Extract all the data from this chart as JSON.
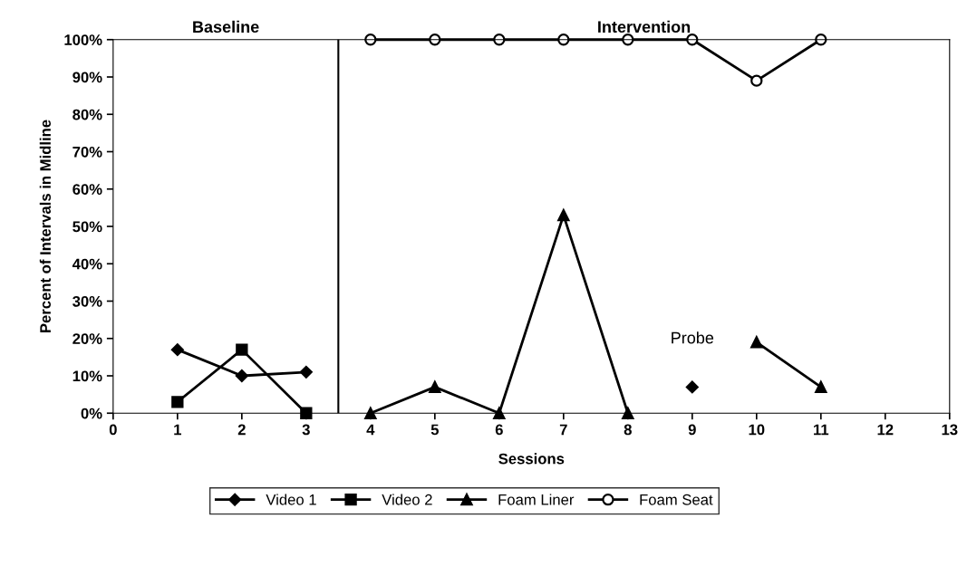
{
  "chart_data": {
    "type": "line",
    "xlabel": "Sessions",
    "ylabel": "Percent of Intervals in Midline",
    "x": [
      1,
      2,
      3,
      4,
      5,
      6,
      7,
      8,
      9,
      10,
      11
    ],
    "series": [
      {
        "name": "Video 1",
        "color": "#000000",
        "marker": "diamond",
        "values": [
          17,
          10,
          11,
          null,
          null,
          null,
          null,
          null,
          7,
          null,
          null
        ]
      },
      {
        "name": "Video 2",
        "color": "#000000",
        "marker": "square",
        "values": [
          3,
          17,
          0,
          null,
          null,
          null,
          null,
          null,
          null,
          null,
          null
        ]
      },
      {
        "name": "Foam Liner",
        "color": "#000000",
        "marker": "triangle",
        "values": [
          null,
          null,
          null,
          0,
          7,
          0,
          53,
          0,
          null,
          19,
          7
        ]
      },
      {
        "name": "Foam Seat",
        "color": "#000000",
        "marker": "circle",
        "values": [
          null,
          null,
          null,
          100,
          100,
          100,
          100,
          100,
          100,
          89,
          100
        ]
      }
    ],
    "xlim": [
      0,
      13
    ],
    "xticks": [
      0,
      1,
      2,
      3,
      4,
      5,
      6,
      7,
      8,
      9,
      10,
      11,
      12,
      13
    ],
    "ylim": [
      0,
      100
    ],
    "yticks": [
      {
        "value": 0,
        "label": "0%"
      },
      {
        "value": 10,
        "label": "10%"
      },
      {
        "value": 20,
        "label": "20%"
      },
      {
        "value": 30,
        "label": "30%"
      },
      {
        "value": 40,
        "label": "40%"
      },
      {
        "value": 50,
        "label": "50%"
      },
      {
        "value": 60,
        "label": "60%"
      },
      {
        "value": 70,
        "label": "70%"
      },
      {
        "value": 80,
        "label": "80%"
      },
      {
        "value": 90,
        "label": "90%"
      },
      {
        "value": 100,
        "label": "100%"
      }
    ],
    "ref_lines": [
      {
        "axis": "x",
        "value": 3.5,
        "color": "#000000"
      }
    ],
    "annotations": [
      "Baseline",
      "Intervention",
      {
        "text": "Probe",
        "x": 9,
        "y": 7
      }
    ],
    "grid": false,
    "legend": "bottom",
    "line_style": "solid"
  }
}
